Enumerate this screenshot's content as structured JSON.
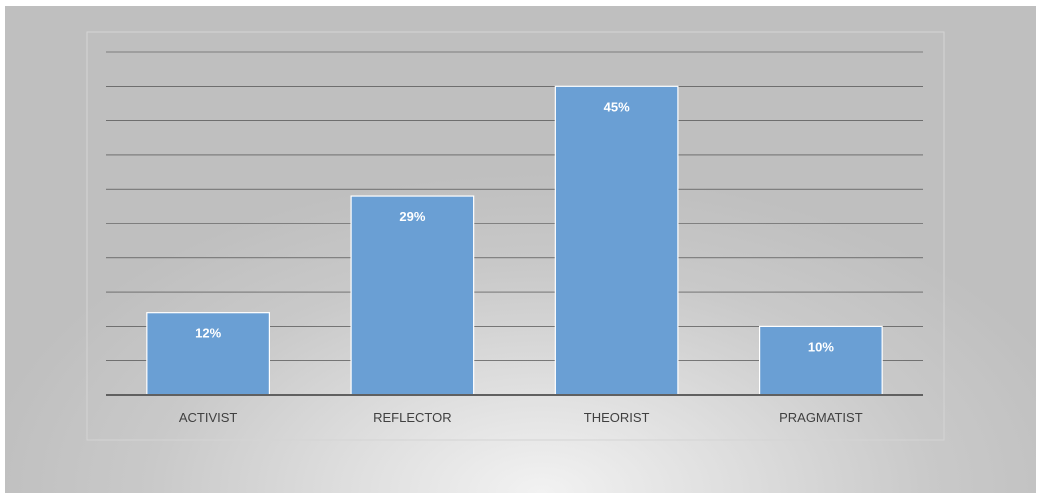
{
  "chart_data": {
    "type": "bar",
    "categories": [
      "ACTIVIST",
      "REFLECTOR",
      "THEORIST",
      "PRAGMATIST"
    ],
    "values": [
      12,
      29,
      45,
      10
    ],
    "data_labels": [
      "12%",
      "29%",
      "45%",
      "10%"
    ],
    "ylim": [
      0,
      50
    ],
    "grid": true,
    "legend": "none",
    "colors": {
      "bar": "#6a9fd4",
      "bar_outline": "#ffffff",
      "gridline": "#3f3f3f",
      "axis": "#606060",
      "label": "#404040"
    }
  }
}
